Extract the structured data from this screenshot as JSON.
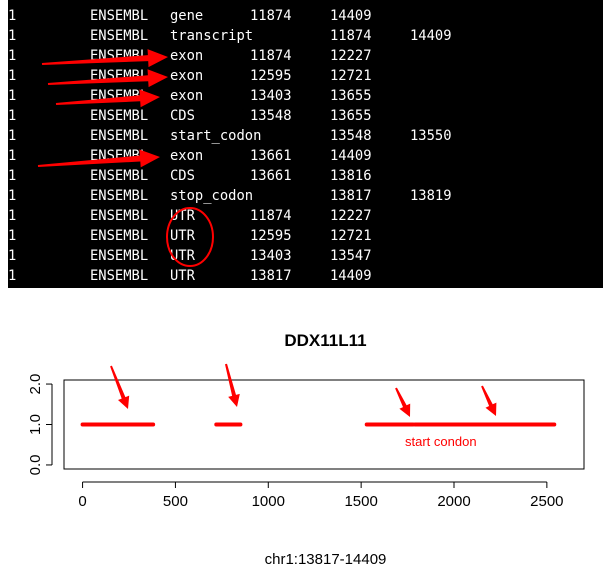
{
  "terminal": {
    "rows": [
      [
        "1",
        "ENSEMBL",
        "gene",
        "11874",
        "14409",
        ""
      ],
      [
        "1",
        "ENSEMBL",
        "transcript",
        "",
        "11874",
        "14409"
      ],
      [
        "1",
        "ENSEMBL",
        "exon",
        "11874",
        "12227",
        ""
      ],
      [
        "1",
        "ENSEMBL",
        "exon",
        "12595",
        "12721",
        ""
      ],
      [
        "1",
        "ENSEMBL",
        "exon",
        "13403",
        "13655",
        ""
      ],
      [
        "1",
        "ENSEMBL",
        "CDS",
        "13548",
        "13655",
        ""
      ],
      [
        "1",
        "ENSEMBL",
        "start_codon",
        "",
        "13548",
        "13550"
      ],
      [
        "1",
        "ENSEMBL",
        "exon",
        "13661",
        "14409",
        ""
      ],
      [
        "1",
        "ENSEMBL",
        "CDS",
        "13661",
        "13816",
        ""
      ],
      [
        "1",
        "ENSEMBL",
        "stop_codon",
        "",
        "13817",
        "13819"
      ],
      [
        "1",
        "ENSEMBL",
        "UTR",
        "11874",
        "12227",
        ""
      ],
      [
        "1",
        "ENSEMBL",
        "UTR",
        "12595",
        "12721",
        ""
      ],
      [
        "1",
        "ENSEMBL",
        "UTR",
        "13403",
        "13547",
        ""
      ],
      [
        "1",
        "ENSEMBL",
        "UTR",
        "13817",
        "14409",
        ""
      ]
    ]
  },
  "chart_data": {
    "type": "scatter",
    "title": "DDX11L11",
    "xlabel": "chr1:13817-14409",
    "ylabel": "",
    "xlim": [
      -100,
      2700
    ],
    "ylim": [
      -0.1,
      2.1
    ],
    "xticks": [
      0,
      500,
      1000,
      1500,
      2000,
      2500
    ],
    "yticks": [
      0.0,
      1.0,
      2.0
    ],
    "xtick_labels": [
      "0",
      "500",
      "1000",
      "1500",
      "2000",
      "2500"
    ],
    "ytick_labels": [
      "0.0",
      "1.0",
      "2.0"
    ],
    "segments": [
      {
        "x_start": 0,
        "x_end": 380,
        "y": 1.0
      },
      {
        "x_start": 720,
        "x_end": 850,
        "y": 1.0
      },
      {
        "x_start": 1530,
        "x_end": 1780,
        "y": 1.0
      },
      {
        "x_start": 1790,
        "x_end": 2540,
        "y": 1.0
      }
    ],
    "annotation": "start condon",
    "mark_color": "#ff0000"
  }
}
